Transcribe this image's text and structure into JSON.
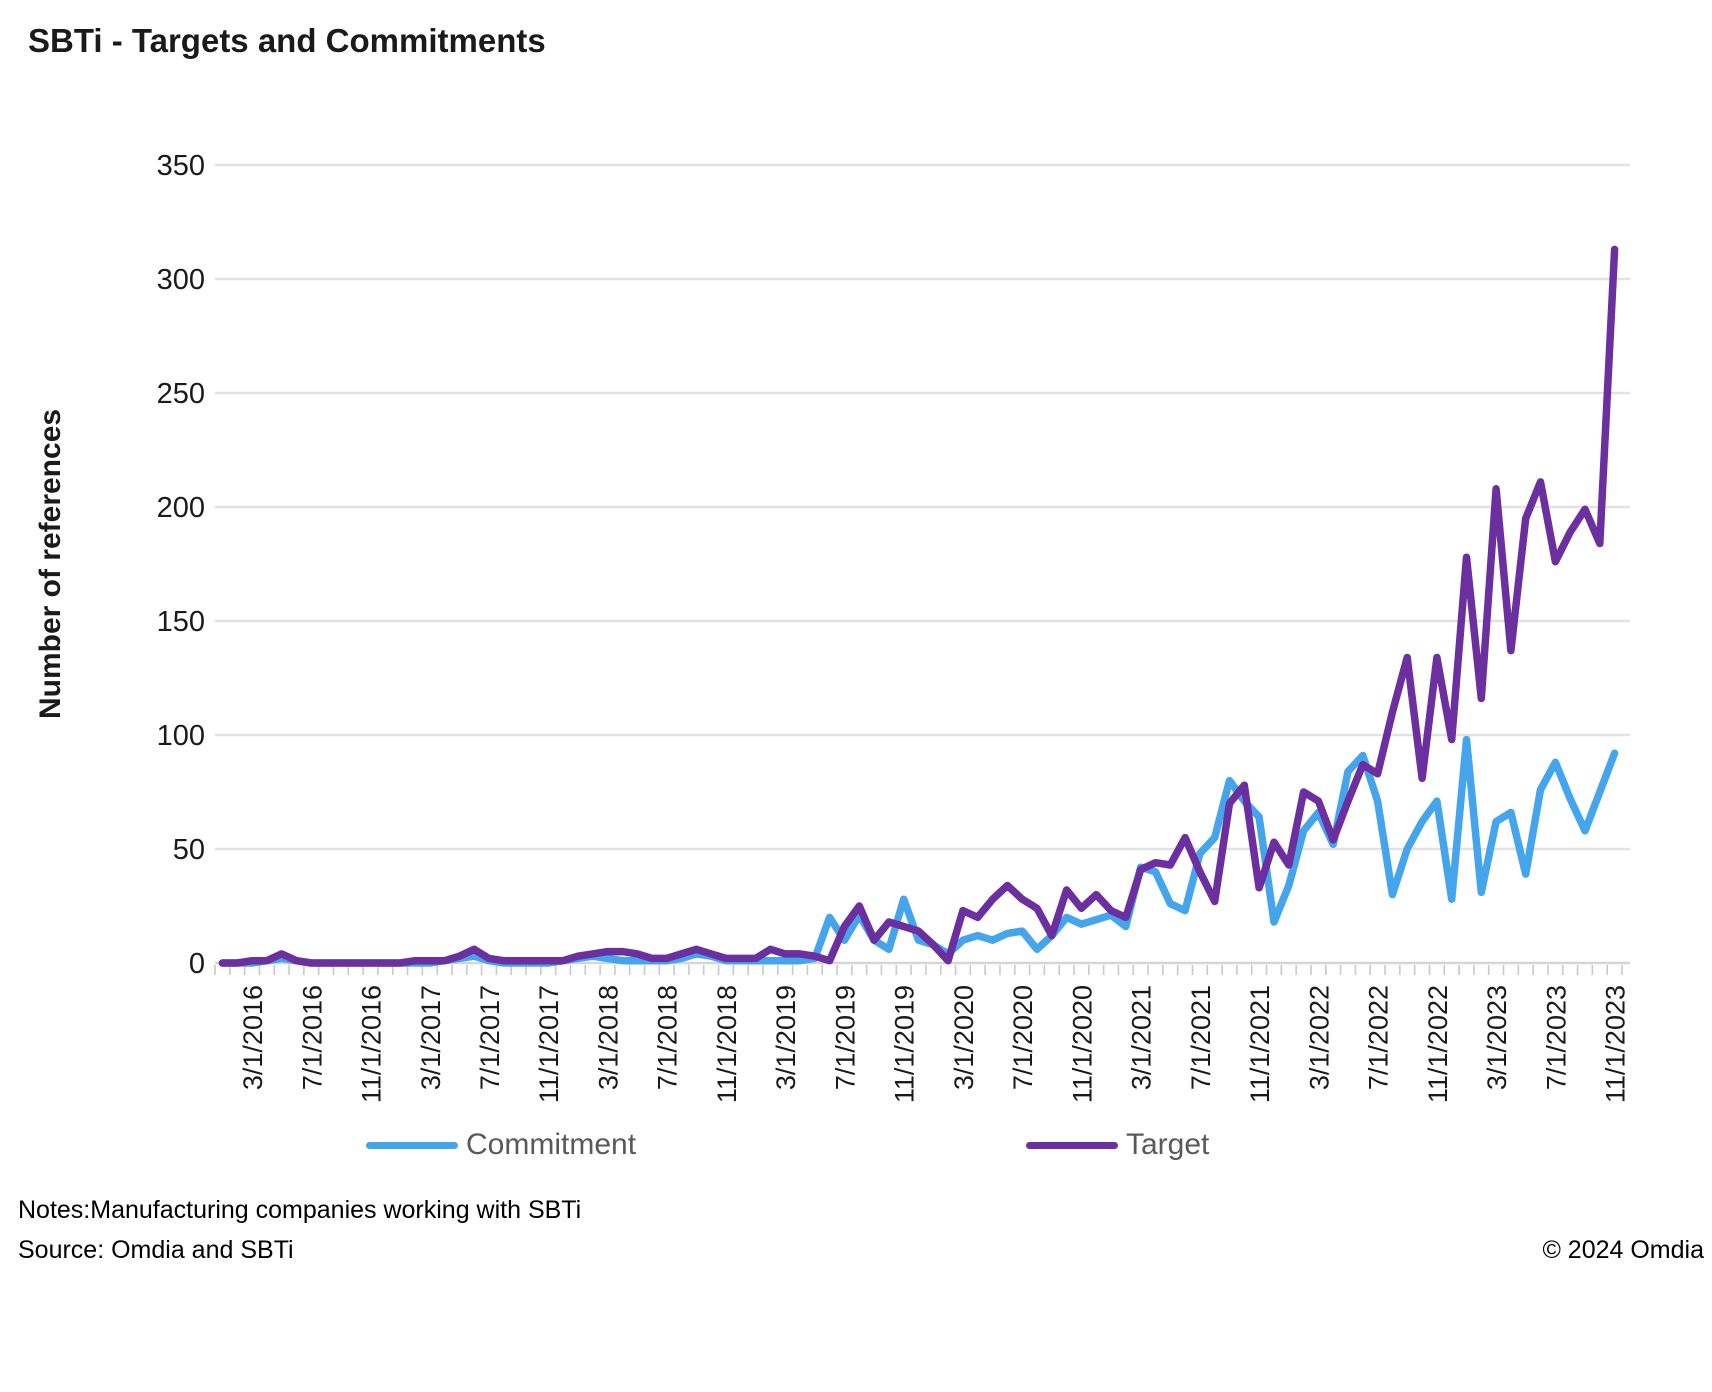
{
  "title": "SBTi - Targets and Commitments",
  "colors": {
    "commitment": "#45A5EC",
    "target": "#6B2FA0",
    "gridline": "#E2E2E2",
    "axis_line": "#D6D6D6",
    "tick": "#C8C8C8",
    "legend_text": "#595959"
  },
  "legend": {
    "items": [
      {
        "label": "Commitment",
        "color": "#45A5EC"
      },
      {
        "label": "Target",
        "color": "#6B2FA0"
      }
    ]
  },
  "footer": {
    "notes": "Notes:Manufacturing companies working with SBTi",
    "source": "Source: Omdia and SBTi",
    "copyright": "© 2024 Omdia"
  },
  "chart_data": {
    "type": "line",
    "title": "SBTi - Targets and Commitments",
    "xlabel": "",
    "ylabel": "Number of references",
    "ylim": [
      0,
      350
    ],
    "y_ticks": [
      0,
      50,
      100,
      150,
      200,
      250,
      300,
      350
    ],
    "grid": true,
    "legend_position": "bottom",
    "x_label_start": 2,
    "x_label_every": 4,
    "x_tick_labels": [
      "3/1/2016",
      "7/1/2016",
      "11/1/2016",
      "3/1/2017",
      "7/1/2017",
      "11/1/2017",
      "3/1/2018",
      "7/1/2018",
      "11/1/2018",
      "3/1/2019",
      "7/1/2019",
      "11/1/2019",
      "3/1/2020",
      "7/1/2020",
      "11/1/2020",
      "3/1/2021",
      "7/1/2021",
      "11/1/2021",
      "3/1/2022",
      "7/1/2022",
      "11/1/2022",
      "3/1/2023",
      "7/1/2023",
      "11/1/2023"
    ],
    "x": [
      "1/1/2016",
      "2/1/2016",
      "3/1/2016",
      "4/1/2016",
      "5/1/2016",
      "6/1/2016",
      "7/1/2016",
      "8/1/2016",
      "9/1/2016",
      "10/1/2016",
      "11/1/2016",
      "12/1/2016",
      "1/1/2017",
      "2/1/2017",
      "3/1/2017",
      "4/1/2017",
      "5/1/2017",
      "6/1/2017",
      "7/1/2017",
      "8/1/2017",
      "9/1/2017",
      "10/1/2017",
      "11/1/2017",
      "12/1/2017",
      "1/1/2018",
      "2/1/2018",
      "3/1/2018",
      "4/1/2018",
      "5/1/2018",
      "6/1/2018",
      "7/1/2018",
      "8/1/2018",
      "9/1/2018",
      "10/1/2018",
      "11/1/2018",
      "12/1/2018",
      "1/1/2019",
      "2/1/2019",
      "3/1/2019",
      "4/1/2019",
      "5/1/2019",
      "6/1/2019",
      "7/1/2019",
      "8/1/2019",
      "9/1/2019",
      "10/1/2019",
      "11/1/2019",
      "12/1/2019",
      "1/1/2020",
      "2/1/2020",
      "3/1/2020",
      "4/1/2020",
      "5/1/2020",
      "6/1/2020",
      "7/1/2020",
      "8/1/2020",
      "9/1/2020",
      "10/1/2020",
      "11/1/2020",
      "12/1/2020",
      "1/1/2021",
      "2/1/2021",
      "3/1/2021",
      "4/1/2021",
      "5/1/2021",
      "6/1/2021",
      "7/1/2021",
      "8/1/2021",
      "9/1/2021",
      "10/1/2021",
      "11/1/2021",
      "12/1/2021",
      "1/1/2022",
      "2/1/2022",
      "3/1/2022",
      "4/1/2022",
      "5/1/2022",
      "6/1/2022",
      "7/1/2022",
      "8/1/2022",
      "9/1/2022",
      "10/1/2022",
      "11/1/2022",
      "12/1/2022",
      "1/1/2023",
      "2/1/2023",
      "3/1/2023",
      "4/1/2023",
      "5/1/2023",
      "6/1/2023",
      "7/1/2023",
      "8/1/2023",
      "9/1/2023",
      "10/1/2023",
      "11/1/2023"
    ],
    "series": [
      {
        "name": "Commitment",
        "color": "#45A5EC",
        "values": [
          0,
          0,
          0,
          1,
          2,
          1,
          0,
          0,
          0,
          0,
          0,
          0,
          0,
          0,
          0,
          1,
          2,
          3,
          1,
          0,
          0,
          0,
          0,
          1,
          2,
          3,
          2,
          1,
          1,
          1,
          1,
          2,
          4,
          3,
          1,
          1,
          1,
          1,
          1,
          1,
          2,
          20,
          10,
          21,
          10,
          6,
          28,
          10,
          8,
          4,
          10,
          12,
          10,
          13,
          14,
          6,
          12,
          20,
          17,
          19,
          21,
          16,
          42,
          40,
          26,
          23,
          48,
          55,
          80,
          71,
          64,
          18,
          34,
          58,
          66,
          52,
          84,
          91,
          71,
          30,
          50,
          62,
          71,
          28,
          98,
          31,
          62,
          66,
          39,
          76,
          88,
          72,
          58,
          75,
          92
        ]
      },
      {
        "name": "Target",
        "color": "#6B2FA0",
        "values": [
          0,
          0,
          1,
          1,
          4,
          1,
          0,
          0,
          0,
          0,
          0,
          0,
          0,
          1,
          1,
          1,
          3,
          6,
          2,
          1,
          1,
          1,
          1,
          1,
          3,
          4,
          5,
          5,
          4,
          2,
          2,
          4,
          6,
          4,
          2,
          2,
          2,
          6,
          4,
          4,
          3,
          1,
          16,
          25,
          10,
          18,
          16,
          14,
          8,
          1,
          23,
          20,
          28,
          34,
          28,
          24,
          12,
          32,
          24,
          30,
          23,
          20,
          41,
          44,
          43,
          55,
          40,
          27,
          70,
          78,
          33,
          53,
          43,
          75,
          71,
          54,
          71,
          87,
          83,
          110,
          134,
          81,
          134,
          98,
          178,
          116,
          208,
          137,
          195,
          211,
          176,
          189,
          199,
          184,
          313
        ]
      }
    ]
  }
}
